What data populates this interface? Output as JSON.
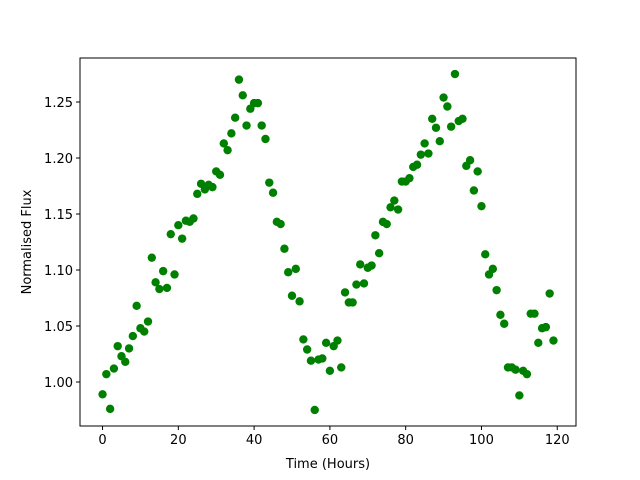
{
  "chart_data": {
    "type": "scatter",
    "xlabel": "Time (Hours)",
    "ylabel": "Normalised Flux",
    "color": "#008000",
    "x": [
      0,
      1,
      2,
      3,
      4,
      5,
      6,
      7,
      8,
      9,
      10,
      11,
      12,
      13,
      14,
      15,
      16,
      17,
      18,
      19,
      20,
      21,
      22,
      23,
      24,
      25,
      26,
      27,
      28,
      29,
      30,
      31,
      32,
      33,
      34,
      35,
      36,
      37,
      38,
      39,
      40,
      41,
      42,
      43,
      44,
      45,
      46,
      47,
      48,
      49,
      50,
      51,
      52,
      53,
      54,
      55,
      56,
      57,
      58,
      59,
      60,
      61,
      62,
      63,
      64,
      65,
      66,
      67,
      68,
      69,
      70,
      71,
      72,
      73,
      74,
      75,
      76,
      77,
      78,
      79,
      80,
      81,
      82,
      83,
      84,
      85,
      86,
      87,
      88,
      89,
      90,
      91,
      92,
      93,
      94,
      95,
      96,
      97,
      98,
      99,
      100,
      101,
      102,
      103,
      104,
      105,
      106,
      107,
      108,
      109,
      110,
      111,
      112,
      113,
      114,
      115,
      116,
      117,
      118,
      119
    ],
    "values": [
      0.989,
      1.007,
      0.976,
      1.012,
      1.032,
      1.023,
      1.018,
      1.03,
      1.041,
      1.068,
      1.048,
      1.045,
      1.054,
      1.111,
      1.089,
      1.083,
      1.099,
      1.084,
      1.132,
      1.096,
      1.14,
      1.128,
      1.144,
      1.143,
      1.146,
      1.168,
      1.177,
      1.172,
      1.176,
      1.174,
      1.188,
      1.185,
      1.213,
      1.207,
      1.222,
      1.236,
      1.27,
      1.256,
      1.229,
      1.244,
      1.249,
      1.249,
      1.229,
      1.217,
      1.178,
      1.169,
      1.143,
      1.141,
      1.119,
      1.098,
      1.077,
      1.101,
      1.072,
      1.038,
      1.029,
      1.019,
      0.975,
      1.02,
      1.021,
      1.035,
      1.01,
      1.032,
      1.037,
      1.013,
      1.08,
      1.071,
      1.071,
      1.087,
      1.105,
      1.088,
      1.102,
      1.104,
      1.131,
      1.115,
      1.143,
      1.141,
      1.156,
      1.162,
      1.154,
      1.179,
      1.179,
      1.182,
      1.192,
      1.194,
      1.203,
      1.213,
      1.204,
      1.235,
      1.227,
      1.215,
      1.254,
      1.246,
      1.228,
      1.275,
      1.233,
      1.235,
      1.193,
      1.198,
      1.171,
      1.188,
      1.157,
      1.114,
      1.096,
      1.101,
      1.082,
      1.06,
      1.052,
      1.013,
      1.013,
      1.011,
      0.988,
      1.01,
      1.007,
      1.061,
      1.061,
      1.035,
      1.048,
      1.049,
      1.079,
      1.037
    ],
    "xlim": [
      -5.95,
      124.95
    ],
    "xticks": [
      0,
      20,
      40,
      60,
      80,
      100,
      120
    ],
    "ylim": [
      0.9607,
      1.2893
    ],
    "yticks": [
      {
        "value": 1.0,
        "label": "1.00"
      },
      {
        "value": 1.05,
        "label": "1.05"
      },
      {
        "value": 1.1,
        "label": "1.10"
      },
      {
        "value": 1.15,
        "label": "1.15"
      },
      {
        "value": 1.2,
        "label": "1.20"
      },
      {
        "value": 1.25,
        "label": "1.25"
      }
    ]
  }
}
